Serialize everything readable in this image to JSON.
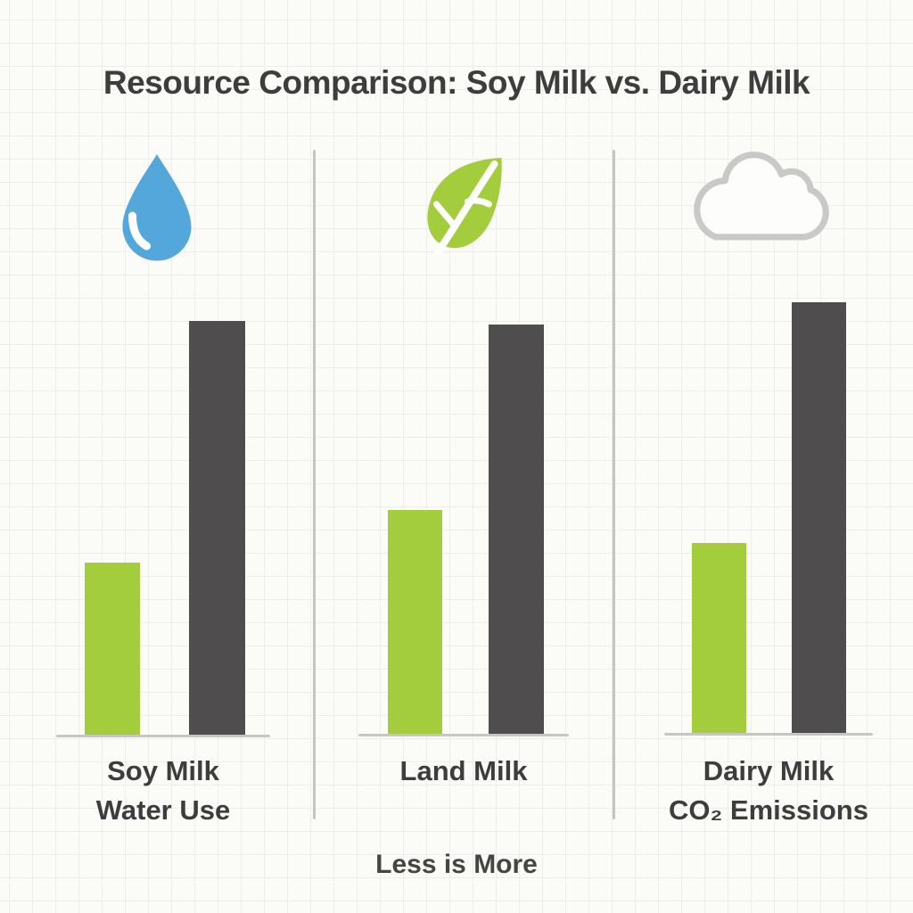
{
  "title": "Resource Comparison: Soy Milk vs. Dairy Milk",
  "footer_note": "Less is More",
  "colors": {
    "soy_green": "#a3cd3d",
    "dairy_gray": "#4f4d4d",
    "water_blue": "#54a7db",
    "leaf_green": "#a3cd3d",
    "cloud_outline": "#c9c9c9",
    "cloud_fill": "#fdfdfb",
    "vein_white": "#ffffff",
    "baseline_gray": "#c6c6c3",
    "divider_gray": "#c4c4c1",
    "text_dark": "#3d3d3d",
    "background": "#fbfbf8",
    "grid_line": "#edede9"
  },
  "panels": [
    {
      "icon": "water-drop-icon",
      "caption_line1": "Soy Milk",
      "caption_line2": "Water Use",
      "bars": [
        {
          "series": "Soy Milk",
          "value": 40
        },
        {
          "series": "Dairy Milk",
          "value": 96
        }
      ]
    },
    {
      "icon": "leaf-icon",
      "caption_line1": "Land Milk",
      "caption_line2": "",
      "bars": [
        {
          "series": "Soy Milk",
          "value": 52
        },
        {
          "series": "Dairy Milk",
          "value": 95
        }
      ]
    },
    {
      "icon": "cloud-icon",
      "caption_line1": "Dairy Milk",
      "caption_line2": "CO₂ Emissions",
      "bars": [
        {
          "series": "Soy Milk",
          "value": 44
        },
        {
          "series": "Dairy Milk",
          "value": 100
        }
      ]
    }
  ],
  "chart_data": {
    "type": "bar",
    "title": "Resource Comparison: Soy Milk vs. Dairy Milk",
    "categories": [
      "Water Use (Soy Milk)",
      "Land Milk",
      "CO₂ Emissions (Dairy Milk)"
    ],
    "series": [
      {
        "name": "Soy Milk (green bars)",
        "values": [
          40,
          52,
          44
        ]
      },
      {
        "name": "Dairy Milk (dark gray bars)",
        "values": [
          96,
          95,
          100
        ]
      }
    ],
    "ylim": [
      0,
      100
    ],
    "value_labels_shown": false,
    "legend_position": "none",
    "annotations": [
      "Less is More"
    ],
    "grid": "faint square grid background"
  }
}
